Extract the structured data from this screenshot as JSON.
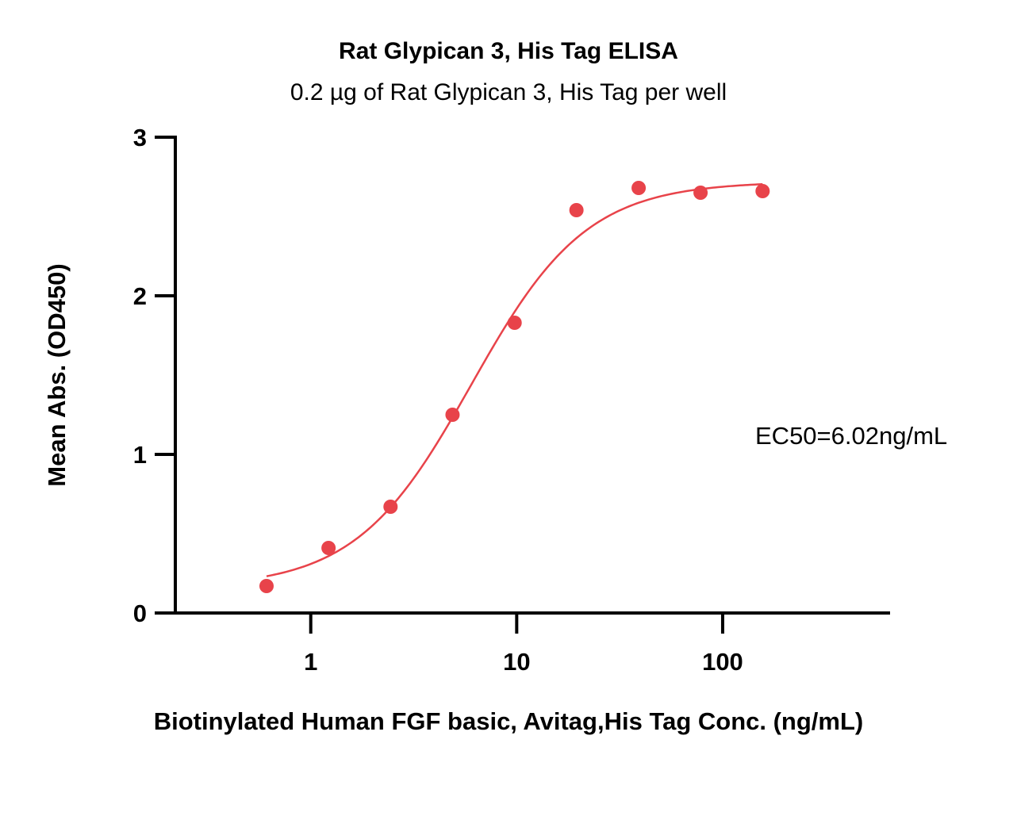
{
  "chart_data": {
    "type": "scatter",
    "title": "Rat Glypican 3, His Tag ELISA",
    "subtitle": "0.2 µg of Rat Glypican 3, His Tag per well",
    "xlabel": "Biotinylated Human FGF basic, Avitag,His Tag Conc. (ng/mL)",
    "ylabel": "Mean Abs. (OD450)",
    "x_scale": "log",
    "xlim": [
      0.22,
      650
    ],
    "ylim": [
      0,
      3
    ],
    "x_ticks": [
      1,
      10,
      100
    ],
    "x_tick_labels": [
      "1",
      "10",
      "100"
    ],
    "y_ticks": [
      0,
      1,
      2,
      3
    ],
    "y_tick_labels": [
      "0",
      "1",
      "2",
      "3"
    ],
    "grid": false,
    "color": "#e8434a",
    "series": [
      {
        "x": [
          0.61,
          1.22,
          2.44,
          4.88,
          9.77,
          19.5,
          39.1,
          78.1,
          156.3
        ],
        "values": [
          0.17,
          0.41,
          0.67,
          1.25,
          1.83,
          2.54,
          2.68,
          2.65,
          2.66
        ]
      }
    ],
    "fit": {
      "model": "4PL",
      "bottom": 0.16,
      "top": 2.72,
      "ec50": 6.02,
      "hill": 1.55,
      "x_range": [
        0.61,
        156.3
      ]
    },
    "annotation": "EC50=6.02ng/mL"
  }
}
